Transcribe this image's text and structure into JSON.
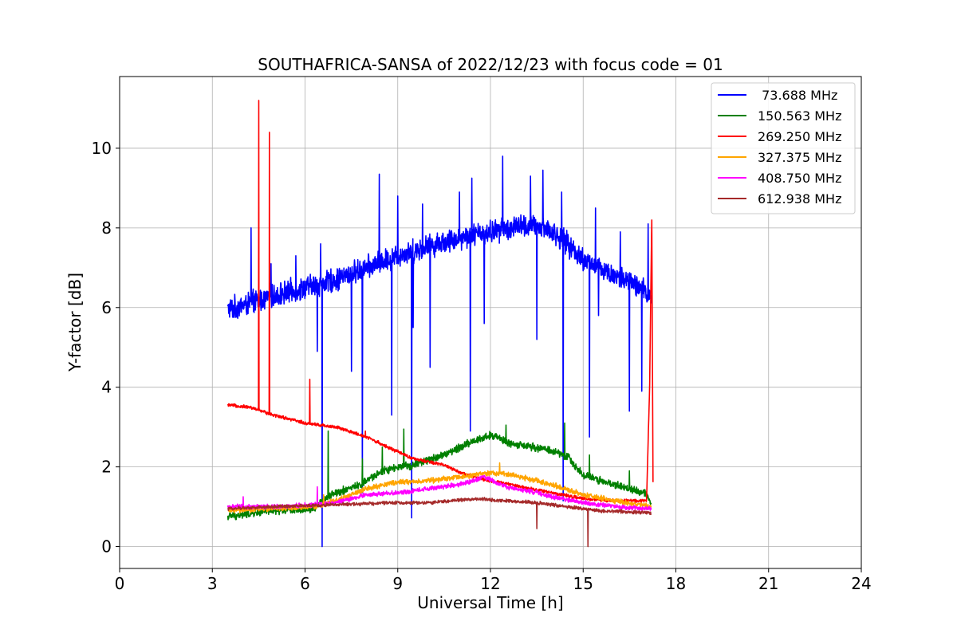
{
  "chart_data": {
    "type": "line",
    "title": "SOUTHAFRICA-SANSA of 2022/12/23 with focus code = 01",
    "xlabel": "Universal Time [h]",
    "ylabel": "Y-factor [dB]",
    "xlim": [
      0,
      24
    ],
    "ylim": [
      -0.55,
      11.8
    ],
    "xticks": [
      0,
      3,
      6,
      9,
      12,
      15,
      18,
      21,
      24
    ],
    "xtick_labels": [
      "0",
      "3",
      "6",
      "9",
      "12",
      "15",
      "18",
      "21",
      "24"
    ],
    "yticks": [
      0,
      2,
      4,
      6,
      8,
      10
    ],
    "ytick_labels": [
      "0",
      "2",
      "4",
      "6",
      "8",
      "10"
    ],
    "grid": true,
    "legend_position": "top-right",
    "series": [
      {
        "name": " 73.688 MHz",
        "color": "#0000ff",
        "baseline": [
          [
            3.5,
            5.95
          ],
          [
            4.2,
            6.1
          ],
          [
            5.0,
            6.3
          ],
          [
            6.0,
            6.5
          ],
          [
            7.0,
            6.7
          ],
          [
            8.0,
            7.0
          ],
          [
            9.0,
            7.3
          ],
          [
            10.0,
            7.55
          ],
          [
            11.0,
            7.75
          ],
          [
            12.0,
            7.9
          ],
          [
            13.0,
            8.05
          ],
          [
            13.8,
            8.0
          ],
          [
            14.5,
            7.6
          ],
          [
            15.0,
            7.2
          ],
          [
            16.0,
            6.8
          ],
          [
            16.6,
            6.6
          ],
          [
            17.2,
            6.3
          ]
        ],
        "noise": 0.35,
        "spikes_up": [
          [
            4.25,
            8.0
          ],
          [
            4.9,
            7.1
          ],
          [
            5.7,
            7.3
          ],
          [
            6.5,
            7.6
          ],
          [
            8.4,
            9.35
          ],
          [
            9.0,
            8.8
          ],
          [
            9.8,
            8.6
          ],
          [
            11.0,
            8.9
          ],
          [
            11.4,
            9.25
          ],
          [
            12.4,
            9.8
          ],
          [
            13.3,
            9.3
          ],
          [
            13.7,
            9.45
          ],
          [
            14.3,
            8.9
          ],
          [
            15.4,
            8.5
          ],
          [
            16.2,
            7.9
          ],
          [
            17.1,
            8.1
          ]
        ],
        "spikes_down": [
          [
            6.4,
            4.9
          ],
          [
            6.55,
            0.0
          ],
          [
            7.5,
            4.4
          ],
          [
            7.85,
            1.35
          ],
          [
            8.8,
            3.3
          ],
          [
            9.45,
            0.72
          ],
          [
            9.5,
            5.5
          ],
          [
            10.05,
            4.5
          ],
          [
            11.35,
            2.9
          ],
          [
            11.8,
            5.6
          ],
          [
            13.5,
            5.2
          ],
          [
            14.35,
            1.15
          ],
          [
            15.2,
            2.75
          ],
          [
            15.5,
            5.8
          ],
          [
            16.5,
            3.4
          ],
          [
            16.9,
            3.9
          ]
        ]
      },
      {
        "name": "150.563 MHz",
        "color": "#008000",
        "baseline": [
          [
            3.5,
            0.75
          ],
          [
            5.0,
            0.9
          ],
          [
            6.3,
            0.95
          ],
          [
            6.8,
            1.3
          ],
          [
            7.8,
            1.55
          ],
          [
            8.5,
            1.9
          ],
          [
            9.5,
            2.05
          ],
          [
            10.5,
            2.3
          ],
          [
            11.3,
            2.6
          ],
          [
            12.0,
            2.8
          ],
          [
            12.8,
            2.55
          ],
          [
            13.8,
            2.45
          ],
          [
            14.5,
            2.25
          ],
          [
            15.0,
            1.8
          ],
          [
            16.0,
            1.55
          ],
          [
            17.0,
            1.35
          ],
          [
            17.2,
            1.1
          ]
        ],
        "noise": 0.12,
        "spikes_up": [
          [
            6.75,
            2.9
          ],
          [
            7.85,
            2.2
          ],
          [
            8.5,
            2.5
          ],
          [
            9.2,
            2.95
          ],
          [
            12.5,
            3.05
          ],
          [
            14.4,
            3.1
          ],
          [
            15.2,
            2.3
          ],
          [
            16.5,
            1.9
          ]
        ],
        "spikes_down": []
      },
      {
        "name": "269.250 MHz",
        "color": "#ff0000",
        "baseline": [
          [
            3.5,
            3.55
          ],
          [
            4.2,
            3.5
          ],
          [
            5.0,
            3.3
          ],
          [
            6.0,
            3.1
          ],
          [
            7.0,
            3.0
          ],
          [
            8.0,
            2.75
          ],
          [
            8.8,
            2.45
          ],
          [
            9.5,
            2.2
          ],
          [
            10.5,
            2.05
          ],
          [
            11.2,
            1.8
          ],
          [
            12.0,
            1.65
          ],
          [
            13.0,
            1.5
          ],
          [
            14.0,
            1.35
          ],
          [
            15.0,
            1.2
          ],
          [
            16.0,
            1.15
          ],
          [
            17.05,
            1.15
          ],
          [
            17.15,
            4.0
          ],
          [
            17.22,
            8.3
          ],
          [
            17.26,
            1.6
          ]
        ],
        "noise": 0.05,
        "spikes_up": [
          [
            4.5,
            11.2
          ],
          [
            4.85,
            10.4
          ],
          [
            6.15,
            4.2
          ],
          [
            7.95,
            2.9
          ]
        ],
        "spikes_down": []
      },
      {
        "name": "327.375 MHz",
        "color": "#ffa500",
        "baseline": [
          [
            3.5,
            0.9
          ],
          [
            5.0,
            0.95
          ],
          [
            6.3,
            1.0
          ],
          [
            7.0,
            1.15
          ],
          [
            8.0,
            1.45
          ],
          [
            8.8,
            1.6
          ],
          [
            10.0,
            1.65
          ],
          [
            11.0,
            1.75
          ],
          [
            12.0,
            1.85
          ],
          [
            12.7,
            1.8
          ],
          [
            13.5,
            1.65
          ],
          [
            14.0,
            1.55
          ],
          [
            15.0,
            1.3
          ],
          [
            16.0,
            1.15
          ],
          [
            17.2,
            1.0
          ]
        ],
        "noise": 0.08,
        "spikes_up": [
          [
            12.3,
            2.1
          ],
          [
            6.6,
            1.3
          ]
        ],
        "spikes_down": []
      },
      {
        "name": "408.750 MHz",
        "color": "#ff00ff",
        "baseline": [
          [
            3.5,
            1.0
          ],
          [
            5.0,
            1.0
          ],
          [
            6.3,
            1.05
          ],
          [
            7.0,
            1.1
          ],
          [
            8.0,
            1.3
          ],
          [
            9.0,
            1.35
          ],
          [
            10.0,
            1.45
          ],
          [
            11.0,
            1.55
          ],
          [
            11.8,
            1.75
          ],
          [
            12.5,
            1.5
          ],
          [
            13.5,
            1.35
          ],
          [
            14.0,
            1.25
          ],
          [
            15.0,
            1.1
          ],
          [
            16.0,
            1.0
          ],
          [
            17.2,
            0.95
          ]
        ],
        "noise": 0.07,
        "spikes_up": [
          [
            6.4,
            1.5
          ],
          [
            4.0,
            1.25
          ]
        ],
        "spikes_down": []
      },
      {
        "name": "612.938 MHz",
        "color": "#a52a2a",
        "baseline": [
          [
            3.5,
            0.95
          ],
          [
            5.0,
            1.0
          ],
          [
            7.0,
            1.05
          ],
          [
            9.0,
            1.1
          ],
          [
            10.0,
            1.1
          ],
          [
            11.5,
            1.2
          ],
          [
            12.5,
            1.15
          ],
          [
            13.5,
            1.1
          ],
          [
            14.5,
            1.0
          ],
          [
            15.5,
            0.9
          ],
          [
            17.2,
            0.85
          ]
        ],
        "noise": 0.05,
        "spikes_up": [],
        "spikes_down": [
          [
            13.5,
            0.45
          ],
          [
            15.15,
            0.0
          ]
        ]
      }
    ]
  }
}
